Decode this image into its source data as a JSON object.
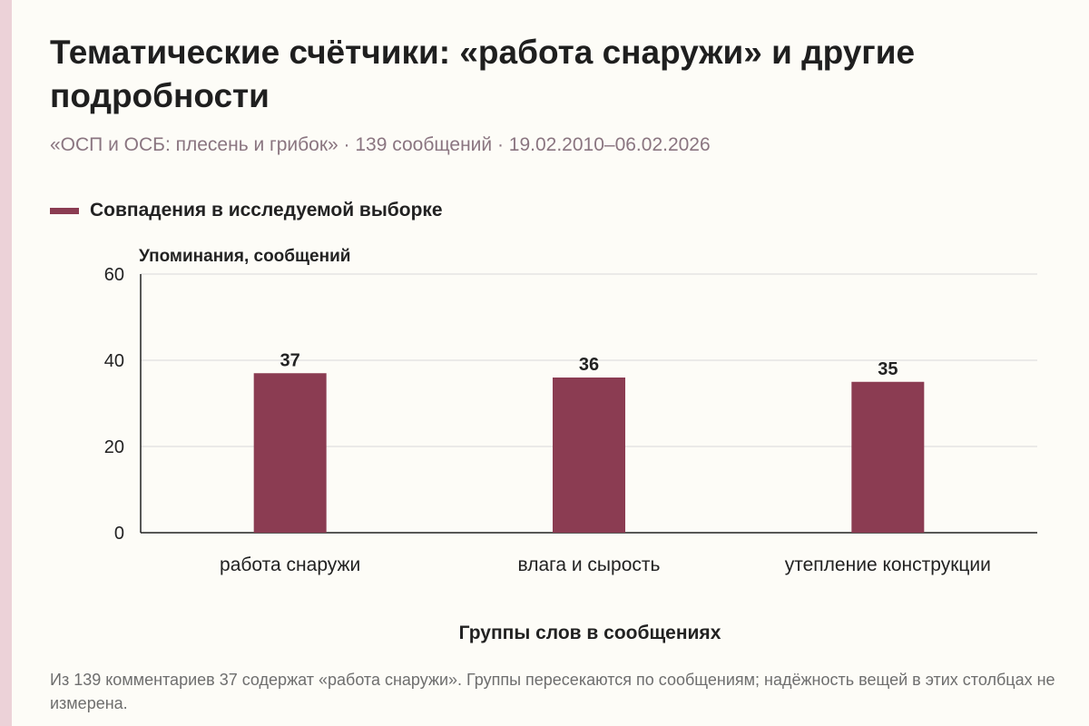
{
  "colors": {
    "bar": "#8b3c52",
    "accent_strip": "#ecd2d8",
    "grid": "#d9d9d9",
    "axis": "#222222",
    "background": "#fdfcf7"
  },
  "subtitle": "«ОСП и ОСБ: плесень и грибок» · 139 сообщений · 19.02.2010–06.02.2026",
  "footnote": "Из 139 комментариев 37 содержат «работа снаружи». Группы пересекаются по сообщениям; надёжность вещей в этих столбцах не измерена.",
  "chart_data": {
    "type": "bar",
    "title": "Тематические счётчики: «работа снаружи» и другие подробности",
    "categories": [
      "работа снаружи",
      "влага и сырость",
      "утепление конструкции"
    ],
    "series": [
      {
        "name": "Совпадения в исследуемой выборке",
        "values": [
          37,
          36,
          35
        ]
      }
    ],
    "xlabel": "Группы слов в сообщениях",
    "ylabel": "Упоминания, сообщений",
    "ylim": [
      0,
      60
    ],
    "yticks": [
      0,
      20,
      40,
      60
    ],
    "grid": true,
    "legend": "top-left",
    "data_labels": true
  }
}
